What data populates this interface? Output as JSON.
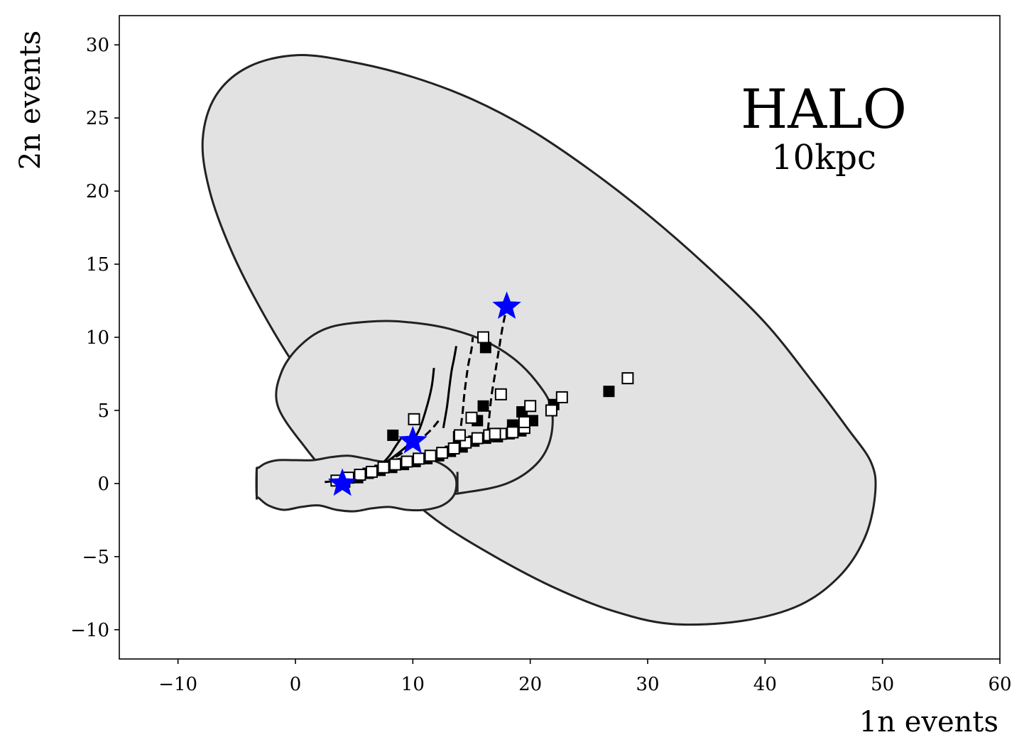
{
  "chart_data": {
    "type": "scatter",
    "title": "",
    "xlabel": "1n events",
    "ylabel": "2n events",
    "xlim": [
      -15,
      60
    ],
    "ylim": [
      -12,
      32
    ],
    "xticks": [
      -10,
      0,
      10,
      20,
      30,
      40,
      50,
      60
    ],
    "yticks": [
      -10,
      -5,
      0,
      5,
      10,
      15,
      20,
      25,
      30
    ],
    "xtick_labels": [
      "−10",
      "0",
      "10",
      "20",
      "30",
      "40",
      "50",
      "60"
    ],
    "ytick_labels": [
      "−10",
      "−5",
      "0",
      "5",
      "10",
      "15",
      "20",
      "25",
      "30"
    ],
    "grid": false,
    "annotations": [
      {
        "id": "main",
        "text": "HALO",
        "x": 45,
        "y": 25
      },
      {
        "id": "sub",
        "text": "10kpc",
        "x": 45,
        "y": 22
      }
    ],
    "regions": [
      {
        "name": "large",
        "fill": "#e2e2e2",
        "edge": "#222222",
        "points": [
          [
            0.2,
            29.3
          ],
          [
            5,
            28.8
          ],
          [
            10,
            27.8
          ],
          [
            15,
            26.3
          ],
          [
            20,
            24.2
          ],
          [
            25,
            21.5
          ],
          [
            30,
            18.4
          ],
          [
            35,
            14.9
          ],
          [
            40,
            11.0
          ],
          [
            44,
            7.0
          ],
          [
            47,
            3.8
          ],
          [
            49,
            1.5
          ],
          [
            49.4,
            -0.5
          ],
          [
            48.6,
            -3.5
          ],
          [
            46.5,
            -6.2
          ],
          [
            43,
            -8.3
          ],
          [
            38,
            -9.4
          ],
          [
            32,
            -9.6
          ],
          [
            27,
            -8.7
          ],
          [
            22,
            -7.1
          ],
          [
            17,
            -5.0
          ],
          [
            12,
            -2.5
          ],
          [
            8,
            0.3
          ],
          [
            4,
            3.6
          ],
          [
            0,
            8.0
          ],
          [
            -3,
            12.0
          ],
          [
            -5.5,
            16.0
          ],
          [
            -7.3,
            20.0
          ],
          [
            -7.9,
            23.5
          ],
          [
            -6.8,
            26.5
          ],
          [
            -4,
            28.5
          ]
        ]
      },
      {
        "name": "medium",
        "fill": "#e2e2e2",
        "edge": "#222222",
        "points": [
          [
            7,
            11.1
          ],
          [
            10,
            11.0
          ],
          [
            13,
            10.6
          ],
          [
            16,
            9.8
          ],
          [
            18.5,
            8.6
          ],
          [
            20.5,
            7.0
          ],
          [
            21.8,
            5.2
          ],
          [
            21.7,
            3.0
          ],
          [
            20.5,
            1.3
          ],
          [
            18,
            0.0
          ],
          [
            14.5,
            -0.6
          ],
          [
            10.5,
            -0.9
          ],
          [
            6,
            -0.5
          ],
          [
            3,
            0.6
          ],
          [
            0.8,
            2.5
          ],
          [
            -1.5,
            5.3
          ],
          [
            -1.2,
            7.6
          ],
          [
            0.5,
            9.5
          ],
          [
            3,
            10.7
          ]
        ]
      },
      {
        "name": "small",
        "fill": "#e2e2e2",
        "edge": "#222222",
        "points": [
          [
            -3.3,
            0.9
          ],
          [
            -3.1,
            1.1
          ],
          [
            -2.5,
            1.4
          ],
          [
            -1.5,
            1.6
          ],
          [
            0,
            1.6
          ],
          [
            1.5,
            1.6
          ],
          [
            3,
            1.8
          ],
          [
            4.5,
            1.9
          ],
          [
            6,
            1.7
          ],
          [
            7.5,
            1.5
          ],
          [
            9,
            1.7
          ],
          [
            10.5,
            1.8
          ],
          [
            12,
            1.5
          ],
          [
            13.2,
            0.9
          ],
          [
            13.7,
            0.2
          ],
          [
            13.5,
            -0.8
          ],
          [
            12.5,
            -1.5
          ],
          [
            11,
            -1.8
          ],
          [
            9.5,
            -1.8
          ],
          [
            8,
            -1.6
          ],
          [
            6.5,
            -1.7
          ],
          [
            5,
            -1.9
          ],
          [
            3.5,
            -1.8
          ],
          [
            2,
            -1.5
          ],
          [
            0.5,
            -1.6
          ],
          [
            -1,
            -1.8
          ],
          [
            -2.3,
            -1.5
          ],
          [
            -3.1,
            -1.0
          ],
          [
            -3.3,
            -0.8
          ]
        ]
      }
    ],
    "region_marks": [
      {
        "x": -3.3,
        "y1": -1.1,
        "y2": 1.1
      },
      {
        "x": 13.8,
        "y1": -0.6,
        "y2": 0.8
      }
    ],
    "lines": [
      {
        "style": "solid",
        "points": [
          [
            2.5,
            0.1
          ],
          [
            4,
            0.25
          ],
          [
            5.5,
            0.6
          ],
          [
            6.5,
            0.9
          ],
          [
            7.3,
            1.3
          ],
          [
            8,
            1.9
          ],
          [
            8.5,
            2.5
          ],
          [
            9,
            3.1
          ]
        ]
      },
      {
        "style": "solid",
        "points": [
          [
            6.8,
            1.0
          ],
          [
            7.8,
            1.5
          ],
          [
            8.8,
            2.1
          ],
          [
            9.8,
            2.8
          ],
          [
            10.5,
            3.6
          ],
          [
            11.1,
            5.0
          ],
          [
            11.6,
            6.6
          ],
          [
            11.8,
            7.9
          ]
        ]
      },
      {
        "style": "dashed",
        "points": [
          [
            5.8,
            0.7
          ],
          [
            7.2,
            1.2
          ],
          [
            8.5,
            1.8
          ],
          [
            9.5,
            2.3
          ],
          [
            10.3,
            2.8
          ],
          [
            11.2,
            3.4
          ],
          [
            11.8,
            3.9
          ],
          [
            12.2,
            4.3
          ]
        ]
      },
      {
        "style": "solid",
        "points": [
          [
            12.6,
            3.8
          ],
          [
            12.9,
            5.2
          ],
          [
            13.1,
            6.5
          ],
          [
            13.3,
            7.7
          ],
          [
            13.5,
            8.5
          ],
          [
            13.7,
            9.4
          ]
        ]
      },
      {
        "style": "dashed",
        "points": [
          [
            12.4,
            2.0
          ],
          [
            13.2,
            2.6
          ],
          [
            13.9,
            3.2
          ],
          [
            14.2,
            4.6
          ],
          [
            14.4,
            6.2
          ],
          [
            14.7,
            8.0
          ],
          [
            15.0,
            9.2
          ],
          [
            15.1,
            10.0
          ]
        ]
      },
      {
        "style": "dashed",
        "points": [
          [
            14.8,
            2.8
          ],
          [
            15.7,
            3.0
          ],
          [
            16.3,
            3.4
          ],
          [
            16.5,
            4.5
          ],
          [
            16.7,
            6.0
          ],
          [
            17.0,
            7.5
          ],
          [
            17.3,
            9.0
          ],
          [
            17.6,
            10.5
          ],
          [
            18.0,
            12.1
          ]
        ]
      }
    ],
    "series": [
      {
        "name": "",
        "marker": "square-open",
        "points": [
          [
            3.5,
            0.2
          ],
          [
            4.5,
            0.4
          ],
          [
            5.5,
            0.6
          ],
          [
            6.5,
            0.8
          ],
          [
            7.5,
            1.1
          ],
          [
            8.5,
            1.3
          ],
          [
            9.5,
            1.5
          ],
          [
            10.5,
            1.7
          ],
          [
            11.5,
            1.9
          ],
          [
            12.5,
            2.1
          ],
          [
            13.5,
            2.4
          ],
          [
            14.5,
            2.8
          ],
          [
            15.5,
            3.1
          ],
          [
            16.5,
            3.3
          ],
          [
            17.5,
            3.4
          ],
          [
            18.5,
            3.5
          ],
          [
            19.5,
            3.8
          ],
          [
            10.1,
            4.4
          ],
          [
            14,
            3.3
          ],
          [
            15,
            4.5
          ],
          [
            16,
            10.0
          ],
          [
            17.5,
            6.1
          ],
          [
            20,
            5.3
          ],
          [
            21.8,
            5.0
          ],
          [
            22.7,
            5.9
          ],
          [
            28.3,
            7.2
          ],
          [
            17,
            3.4
          ],
          [
            19.5,
            4.2
          ]
        ]
      },
      {
        "name": "",
        "marker": "square-filled",
        "points": [
          [
            4.2,
            0.1
          ],
          [
            5.3,
            0.4
          ],
          [
            6.2,
            0.7
          ],
          [
            7.2,
            0.9
          ],
          [
            8.2,
            1.1
          ],
          [
            9.2,
            1.3
          ],
          [
            10.2,
            1.5
          ],
          [
            11.2,
            1.7
          ],
          [
            12.2,
            1.9
          ],
          [
            13.2,
            2.2
          ],
          [
            14.2,
            2.5
          ],
          [
            15.2,
            2.9
          ],
          [
            16.2,
            3.1
          ],
          [
            17.2,
            3.2
          ],
          [
            18.2,
            3.4
          ],
          [
            19.2,
            3.6
          ],
          [
            8.3,
            3.3
          ],
          [
            13.9,
            3.2
          ],
          [
            15.5,
            4.3
          ],
          [
            16.0,
            5.3
          ],
          [
            16.2,
            9.3
          ],
          [
            18.5,
            4.0
          ],
          [
            19.3,
            4.9
          ],
          [
            20.2,
            4.3
          ],
          [
            22.0,
            5.4
          ],
          [
            26.7,
            6.3
          ]
        ]
      },
      {
        "name": "",
        "marker": "star",
        "color": "#0000ff",
        "points": [
          [
            4.0,
            0.0
          ],
          [
            10.0,
            2.9
          ],
          [
            18.0,
            12.1
          ]
        ]
      }
    ]
  }
}
